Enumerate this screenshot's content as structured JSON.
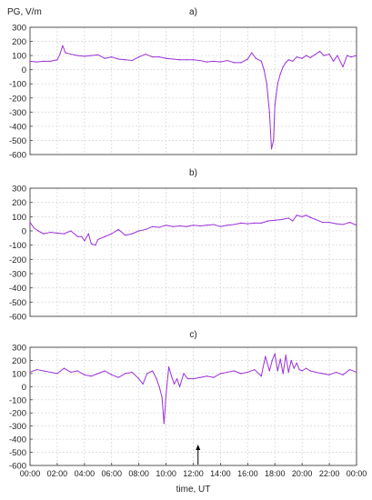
{
  "chart_data": [
    {
      "type": "line",
      "title": "a)",
      "ylabel": "PG, V/m",
      "xlabel": "",
      "ylim": [
        -600,
        300
      ],
      "xlim": [
        0,
        24
      ],
      "grid": true,
      "series": [
        {
          "color": "#9b30d9",
          "x": [
            0.0,
            0.5,
            1.0,
            1.5,
            2.0,
            2.2,
            2.4,
            2.6,
            3.0,
            3.5,
            4.0,
            4.5,
            5.0,
            5.5,
            6.0,
            6.5,
            7.0,
            7.5,
            8.0,
            8.5,
            9.0,
            9.5,
            10.0,
            10.5,
            11.0,
            11.5,
            12.0,
            12.5,
            13.0,
            13.5,
            14.0,
            14.5,
            15.0,
            15.5,
            16.0,
            16.3,
            16.6,
            17.0,
            17.2,
            17.4,
            17.6,
            17.75,
            17.9,
            18.0,
            18.2,
            18.4,
            18.6,
            18.8,
            19.0,
            19.3,
            19.6,
            20.0,
            20.3,
            20.6,
            21.0,
            21.3,
            21.6,
            22.0,
            22.3,
            22.6,
            23.0,
            23.3,
            23.6,
            24.0
          ],
          "y": [
            60,
            55,
            60,
            60,
            70,
            110,
            170,
            120,
            110,
            100,
            95,
            100,
            105,
            80,
            90,
            75,
            70,
            65,
            90,
            110,
            90,
            90,
            80,
            75,
            70,
            70,
            70,
            65,
            55,
            60,
            55,
            65,
            50,
            50,
            75,
            120,
            80,
            60,
            0,
            -100,
            -300,
            -560,
            -500,
            -250,
            -100,
            -30,
            20,
            50,
            70,
            60,
            90,
            80,
            100,
            85,
            110,
            130,
            100,
            110,
            60,
            100,
            20,
            100,
            90,
            100
          ]
        }
      ]
    },
    {
      "type": "line",
      "title": "b)",
      "xlabel": "",
      "ylabel": "",
      "ylim": [
        -600,
        300
      ],
      "xlim": [
        0,
        24
      ],
      "grid": true,
      "series": [
        {
          "color": "#9b30d9",
          "x": [
            0.0,
            0.3,
            0.6,
            1.0,
            1.5,
            2.0,
            2.5,
            3.0,
            3.5,
            3.8,
            4.0,
            4.3,
            4.5,
            4.8,
            5.0,
            5.5,
            6.0,
            6.5,
            7.0,
            7.5,
            8.0,
            8.5,
            9.0,
            9.5,
            10.0,
            10.5,
            11.0,
            11.5,
            12.0,
            12.5,
            13.0,
            13.5,
            14.0,
            14.5,
            15.0,
            15.5,
            16.0,
            16.5,
            17.0,
            17.5,
            18.0,
            18.5,
            19.0,
            19.3,
            19.6,
            20.0,
            20.3,
            20.6,
            21.0,
            21.5,
            22.0,
            22.5,
            23.0,
            23.5,
            24.0
          ],
          "y": [
            60,
            20,
            0,
            -20,
            -10,
            -15,
            -20,
            0,
            -40,
            -40,
            -70,
            -20,
            -90,
            -100,
            -60,
            -40,
            -20,
            10,
            -30,
            -20,
            0,
            10,
            30,
            25,
            40,
            30,
            35,
            30,
            40,
            35,
            40,
            45,
            30,
            40,
            45,
            55,
            50,
            55,
            55,
            70,
            75,
            80,
            90,
            70,
            110,
            100,
            110,
            95,
            80,
            60,
            60,
            50,
            45,
            60,
            40
          ]
        }
      ]
    },
    {
      "type": "line",
      "title": "c)",
      "xlabel": "time, UT",
      "ylabel": "",
      "ylim": [
        -600,
        300
      ],
      "xlim": [
        0,
        24
      ],
      "grid": true,
      "x_ticklabels": [
        "00:00",
        "02:00",
        "04:00",
        "06:00",
        "08:00",
        "10:00",
        "12:00",
        "14:00",
        "16:00",
        "18:00",
        "20:00",
        "22:00",
        "00:00"
      ],
      "series": [
        {
          "color": "#9b30d9",
          "x": [
            0.0,
            0.5,
            1.0,
            1.5,
            2.0,
            2.5,
            3.0,
            3.5,
            4.0,
            4.5,
            5.0,
            5.5,
            6.0,
            6.5,
            7.0,
            7.5,
            8.0,
            8.3,
            8.6,
            9.0,
            9.3,
            9.5,
            9.7,
            9.85,
            10.0,
            10.2,
            10.4,
            10.6,
            10.8,
            11.0,
            11.3,
            11.6,
            12.0,
            12.5,
            13.0,
            13.5,
            14.0,
            14.5,
            15.0,
            15.5,
            16.0,
            16.5,
            17.0,
            17.3,
            17.6,
            17.8,
            18.0,
            18.2,
            18.4,
            18.6,
            18.8,
            19.0,
            19.2,
            19.4,
            19.6,
            19.8,
            20.0,
            20.3,
            20.6,
            21.0,
            21.5,
            22.0,
            22.5,
            23.0,
            23.5,
            24.0
          ],
          "y": [
            110,
            130,
            120,
            110,
            100,
            140,
            110,
            120,
            90,
            80,
            100,
            120,
            90,
            70,
            100,
            110,
            60,
            20,
            100,
            120,
            60,
            0,
            -80,
            -280,
            -60,
            150,
            80,
            20,
            60,
            0,
            100,
            60,
            60,
            70,
            80,
            70,
            100,
            110,
            120,
            100,
            110,
            130,
            80,
            230,
            120,
            200,
            250,
            120,
            210,
            100,
            240,
            110,
            200,
            140,
            180,
            130,
            120,
            140,
            120,
            110,
            100,
            90,
            110,
            90,
            130,
            110
          ]
        }
      ]
    }
  ],
  "y_ticklabels": [
    "300",
    "200",
    "100",
    "0",
    "-100",
    "-200",
    "-300",
    "-400",
    "-500",
    "-600"
  ],
  "marker": {
    "at_hour": 12.35,
    "symbol": "arrow"
  }
}
